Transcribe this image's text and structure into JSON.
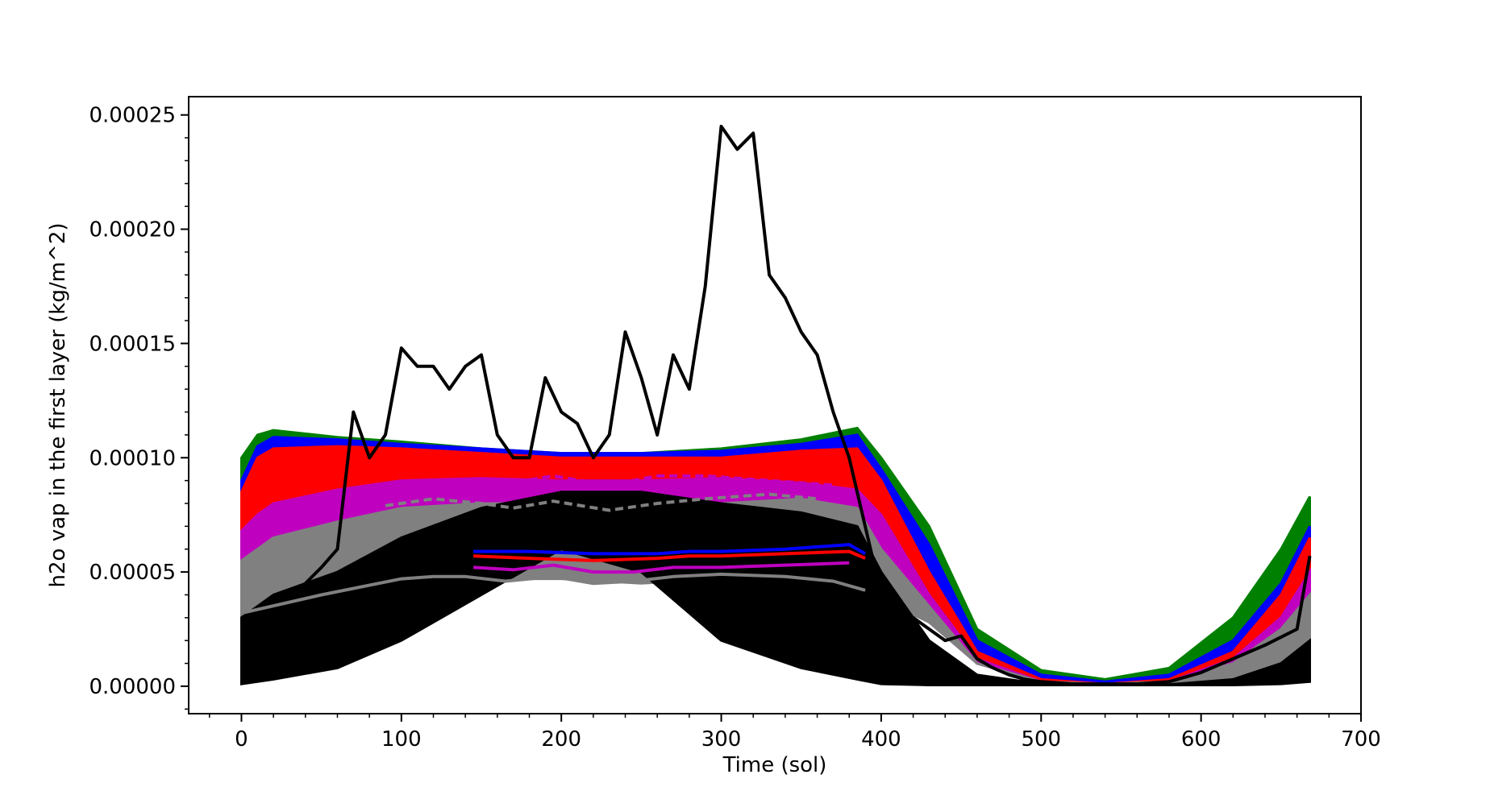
{
  "chart_data": {
    "type": "line",
    "title": "",
    "xlabel": "Time (sol)",
    "ylabel": "h2o vap in the first layer (kg/m^2)",
    "xlim": [
      -33,
      700
    ],
    "ylim": [
      -1.2e-05,
      0.000258
    ],
    "xticks": [
      0,
      100,
      200,
      300,
      400,
      500,
      600,
      700
    ],
    "xtick_labels": [
      "0",
      "100",
      "200",
      "300",
      "400",
      "500",
      "600",
      "700"
    ],
    "yticks": [
      0,
      5e-05,
      0.0001,
      0.00015,
      0.0002,
      0.00025
    ],
    "ytick_labels": [
      "0.00000",
      "0.00005",
      "0.00010",
      "0.00015",
      "0.00020",
      "0.00025"
    ],
    "grid": false,
    "legend": "none",
    "bands": [
      {
        "color": "#008000",
        "x": [
          0,
          10,
          20,
          60,
          100,
          150,
          200,
          250,
          300,
          350,
          385,
          400,
          430,
          460,
          500,
          540,
          580,
          620,
          650,
          668
        ],
        "upper": [
          0.0001,
          0.00011,
          0.000112,
          0.000109,
          0.000107,
          0.000104,
          0.000102,
          0.000102,
          0.000104,
          0.000108,
          0.000113,
          0.0001,
          7e-05,
          2.5e-05,
          7e-06,
          3e-06,
          8e-06,
          3e-05,
          6e-05,
          8.3e-05
        ],
        "lower": [
          3e-05,
          3.5e-05,
          4e-05,
          4.5e-05,
          5e-05,
          5.5e-05,
          6e-05,
          6e-05,
          5.8e-05,
          5.5e-05,
          5e-05,
          4e-05,
          3e-05,
          1e-05,
          2e-06,
          1e-06,
          1e-06,
          2e-06,
          5e-06,
          8e-06
        ]
      },
      {
        "color": "#0000ff",
        "x": [
          0,
          10,
          20,
          60,
          100,
          150,
          200,
          250,
          300,
          350,
          385,
          400,
          430,
          460,
          500,
          540,
          580,
          620,
          650,
          668
        ],
        "upper": [
          9e-05,
          0.000105,
          0.000109,
          0.000108,
          0.000106,
          0.000104,
          0.000102,
          0.000102,
          0.000103,
          0.000106,
          0.00011,
          9.5e-05,
          6.2e-05,
          2e-05,
          5e-06,
          2e-06,
          5e-06,
          2e-05,
          4.5e-05,
          7e-05
        ],
        "lower": [
          3.5e-05,
          4e-05,
          4.5e-05,
          5e-05,
          5.5e-05,
          6e-05,
          6e-05,
          6e-05,
          5.8e-05,
          5.6e-05,
          5.2e-05,
          4.2e-05,
          3e-05,
          1e-05,
          2e-06,
          1e-06,
          1e-06,
          2e-06,
          5e-06,
          8e-06
        ]
      },
      {
        "color": "#ff0000",
        "x": [
          0,
          10,
          20,
          60,
          100,
          150,
          200,
          250,
          300,
          350,
          385,
          400,
          430,
          460,
          500,
          540,
          580,
          620,
          650,
          668
        ],
        "upper": [
          8.5e-05,
          0.0001,
          0.000104,
          0.000105,
          0.000104,
          0.000102,
          0.0001,
          0.0001,
          0.0001,
          0.000103,
          0.000104,
          9e-05,
          5e-05,
          1.5e-05,
          3e-06,
          1e-06,
          3e-06,
          1.5e-05,
          4e-05,
          6.5e-05
        ],
        "lower": [
          3.8e-05,
          4.2e-05,
          4.6e-05,
          5e-05,
          5.4e-05,
          5.6e-05,
          5.5e-05,
          5.5e-05,
          5.6e-05,
          5.6e-05,
          5.4e-05,
          4.5e-05,
          3e-05,
          1e-05,
          2e-06,
          1e-06,
          1e-06,
          2e-06,
          5e-06,
          8e-06
        ]
      },
      {
        "color": "#bf00bf",
        "x": [
          0,
          10,
          20,
          60,
          100,
          150,
          200,
          250,
          300,
          350,
          385,
          400,
          430,
          460,
          500,
          540,
          580,
          620,
          650,
          668
        ],
        "upper": [
          6.8e-05,
          7.5e-05,
          8e-05,
          8.6e-05,
          9e-05,
          9.1e-05,
          9e-05,
          9e-05,
          9.1e-05,
          8.9e-05,
          8.6e-05,
          7.5e-05,
          4e-05,
          1.2e-05,
          2e-06,
          1e-06,
          2e-06,
          1.2e-05,
          3e-05,
          5e-05
        ],
        "lower": [
          3.5e-05,
          3.8e-05,
          4e-05,
          4.4e-05,
          4.7e-05,
          4.9e-05,
          5e-05,
          5e-05,
          5e-05,
          4.9e-05,
          4.7e-05,
          4e-05,
          2.8e-05,
          1e-05,
          2e-06,
          1e-06,
          1e-06,
          2e-06,
          5e-06,
          8e-06
        ]
      },
      {
        "color": "#808080",
        "x": [
          0,
          10,
          20,
          60,
          100,
          150,
          200,
          250,
          300,
          350,
          385,
          400,
          430,
          460,
          500,
          540,
          580,
          620,
          650,
          668
        ],
        "upper": [
          5.5e-05,
          6e-05,
          6.5e-05,
          7.2e-05,
          7.8e-05,
          8e-05,
          8e-05,
          7.8e-05,
          8e-05,
          8.2e-05,
          7.8e-05,
          6e-05,
          3.5e-05,
          1e-05,
          2e-06,
          1e-06,
          2e-06,
          1e-05,
          2.5e-05,
          4e-05
        ],
        "lower": [
          3e-05,
          3.3e-05,
          3.6e-05,
          4e-05,
          4.5e-05,
          4.7e-05,
          4.7e-05,
          4.5e-05,
          4.7e-05,
          4.8e-05,
          4.5e-05,
          3.8e-05,
          2.8e-05,
          1e-05,
          2e-06,
          1e-06,
          1e-06,
          2e-06,
          5e-06,
          8e-06
        ]
      },
      {
        "color": "#000000",
        "x": [
          0,
          10,
          20,
          60,
          100,
          150,
          200,
          250,
          300,
          350,
          385,
          400,
          430,
          460,
          500,
          540,
          580,
          620,
          650,
          668
        ],
        "upper": [
          3e-05,
          3.5e-05,
          4e-05,
          5e-05,
          6.5e-05,
          7.8e-05,
          8.5e-05,
          8.5e-05,
          8e-05,
          7.6e-05,
          7e-05,
          5e-05,
          2e-05,
          5e-06,
          1e-06,
          5e-07,
          8e-07,
          3e-06,
          1e-05,
          2e-05
        ],
        "lower": [
          1e-06,
          2e-06,
          3e-06,
          8e-06,
          2e-05,
          4e-05,
          6e-05,
          5e-05,
          2e-05,
          8e-06,
          3e-06,
          1e-06,
          5e-07,
          5e-07,
          5e-07,
          5e-07,
          5e-07,
          5e-07,
          1e-06,
          2e-06
        ]
      }
    ],
    "series": [
      {
        "color": "#000000",
        "style": "solid",
        "x": [
          0,
          10,
          20,
          30,
          40,
          50,
          60,
          70,
          80,
          90,
          100,
          110,
          120,
          130,
          140,
          150,
          160,
          170,
          180,
          190,
          200,
          210,
          220,
          230,
          240,
          250,
          260,
          270,
          280,
          290,
          300,
          310,
          320,
          330,
          340,
          350,
          360,
          370,
          380,
          390,
          400,
          410,
          420,
          430,
          440,
          450,
          460,
          470,
          480,
          490,
          500,
          520,
          540,
          560,
          580,
          600,
          620,
          640,
          660,
          668
        ],
        "values": [
          3e-05,
          3.3e-05,
          3.6e-05,
          4e-05,
          4.5e-05,
          5.2e-05,
          6e-05,
          0.00012,
          0.0001,
          0.00011,
          0.000148,
          0.00014,
          0.00014,
          0.00013,
          0.00014,
          0.000145,
          0.00011,
          0.0001,
          0.0001,
          0.000135,
          0.00012,
          0.000115,
          0.0001,
          0.00011,
          0.000155,
          0.000135,
          0.00011,
          0.000145,
          0.00013,
          0.000175,
          0.000245,
          0.000235,
          0.000242,
          0.00018,
          0.00017,
          0.000155,
          0.000145,
          0.00012,
          0.0001,
          7e-05,
          4e-05,
          3e-05,
          3e-05,
          2.5e-05,
          2e-05,
          2.2e-05,
          1.2e-05,
          8e-06,
          5e-06,
          3e-06,
          2e-06,
          1e-06,
          1e-06,
          1e-06,
          2e-06,
          6e-06,
          1.2e-05,
          1.8e-05,
          2.5e-05,
          5.7e-05
        ]
      },
      {
        "color": "#0000ff",
        "style": "solid",
        "x": [
          145,
          180,
          220,
          260,
          280,
          300,
          340,
          380,
          390
        ],
        "values": [
          5.9e-05,
          5.9e-05,
          5.8e-05,
          5.8e-05,
          5.9e-05,
          5.9e-05,
          6e-05,
          6.2e-05,
          5.8e-05
        ]
      },
      {
        "color": "#ff0000",
        "style": "solid",
        "x": [
          145,
          180,
          220,
          260,
          280,
          300,
          340,
          380,
          390
        ],
        "values": [
          5.7e-05,
          5.6e-05,
          5.5e-05,
          5.6e-05,
          5.7e-05,
          5.7e-05,
          5.8e-05,
          5.9e-05,
          5.6e-05
        ]
      },
      {
        "color": "#bf00bf",
        "style": "solid",
        "x": [
          145,
          170,
          195,
          220,
          245,
          270,
          300,
          340,
          380
        ],
        "values": [
          5.2e-05,
          5.1e-05,
          5.3e-05,
          5e-05,
          5e-05,
          5.2e-05,
          5.2e-05,
          5.3e-05,
          5.4e-05
        ]
      },
      {
        "color": "#808080",
        "style": "solid",
        "x": [
          0,
          50,
          100,
          120,
          140,
          165,
          195,
          220,
          245,
          270,
          300,
          340,
          370,
          390
        ],
        "values": [
          3.2e-05,
          4e-05,
          4.7e-05,
          4.8e-05,
          4.8e-05,
          4.6e-05,
          4.8e-05,
          4.5e-05,
          4.6e-05,
          4.8e-05,
          4.9e-05,
          4.8e-05,
          4.6e-05,
          4.2e-05
        ]
      },
      {
        "color": "#bf00bf",
        "style": "dashed",
        "x": [
          100,
          130,
          160,
          195,
          230,
          260,
          290,
          330,
          370
        ],
        "values": [
          8.8e-05,
          9e-05,
          8.8e-05,
          9.2e-05,
          8.8e-05,
          9.2e-05,
          9.2e-05,
          9e-05,
          8.8e-05
        ]
      },
      {
        "color": "#808080",
        "style": "dashed",
        "x": [
          90,
          120,
          150,
          170,
          195,
          230,
          260,
          290,
          330,
          360
        ],
        "values": [
          7.9e-05,
          8.2e-05,
          8e-05,
          7.8e-05,
          8.1e-05,
          7.7e-05,
          8e-05,
          8.2e-05,
          8.4e-05,
          8.2e-05
        ]
      }
    ]
  }
}
